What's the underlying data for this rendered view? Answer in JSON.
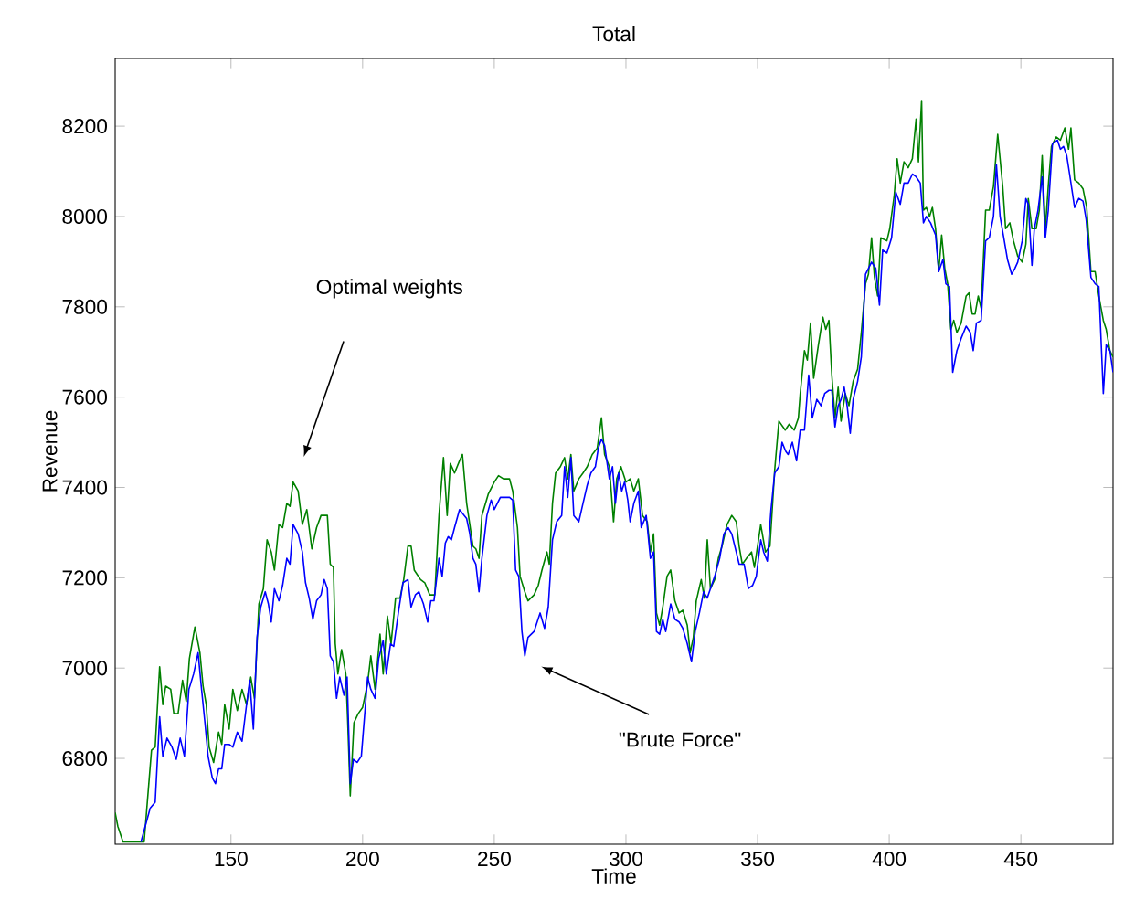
{
  "chart_data": {
    "type": "line",
    "title": "Total",
    "xlabel": "Time",
    "ylabel": "Revenue",
    "xlim": [
      106,
      485
    ],
    "ylim": [
      6610,
      8350
    ],
    "xticks": [
      150,
      200,
      250,
      300,
      350,
      400,
      450
    ],
    "yticks": [
      6800,
      7000,
      7200,
      7400,
      7600,
      7800,
      8000,
      8200
    ],
    "series": [
      {
        "color": "#008000",
        "x": [
          106,
          107,
          109,
          117,
          119.8,
          121.2,
          122.9,
          124.1,
          125.2,
          127.1,
          128.3,
          129.9,
          131.6,
          133.0,
          134.2,
          136.3,
          138.2,
          139.4,
          140.6,
          141.7,
          143.4,
          145.3,
          146.5,
          147.6,
          149.3,
          150.7,
          152.4,
          154.2,
          155.9,
          157.5,
          158.9,
          160.6,
          162.3,
          163.7,
          165.3,
          166.5,
          168.2,
          169.6,
          171.2,
          172.4,
          173.6,
          175.5,
          177.1,
          178.8,
          180.7,
          182.5,
          184.2,
          186.6,
          187.7,
          188.9,
          189.6,
          190.6,
          192.0,
          193.6,
          194.3,
          195.3,
          196.7,
          198.3,
          200.0,
          201.9,
          203.1,
          204.7,
          206.6,
          207.8,
          209.4,
          210.8,
          212.5,
          214.2,
          215.6,
          217.2,
          218.4,
          219.6,
          222.0,
          223.6,
          225.5,
          227.4,
          229.0,
          230.7,
          232.1,
          233.3,
          234.9,
          236.8,
          237.9,
          239.5,
          240.7,
          241.9,
          243.0,
          244.2,
          245.3,
          247.7,
          250.0,
          251.6,
          253.5,
          255.8,
          257.0,
          258.8,
          259.8,
          261.6,
          262.8,
          265.1,
          266.7,
          268.1,
          270.0,
          270.9,
          272.1,
          273.3,
          275.1,
          276.7,
          277.9,
          279.1,
          280.2,
          282.1,
          283.7,
          285.3,
          287.2,
          289.1,
          290.7,
          291.9,
          293.7,
          295.3,
          296.5,
          298.1,
          300.0,
          301.6,
          303.0,
          304.7,
          306.3,
          308.1,
          309.3,
          310.5,
          311.6,
          312.8,
          314.0,
          315.6,
          317.0,
          318.6,
          320.2,
          321.6,
          323.3,
          324.4,
          325.6,
          326.7,
          328.6,
          329.8,
          330.9,
          332.1,
          333.7,
          335.1,
          336.5,
          338.4,
          340.2,
          341.9,
          343.0,
          344.2,
          345.8,
          347.7,
          348.8,
          351.2,
          353.0,
          354.7,
          356.5,
          358.1,
          360.5,
          362.0,
          363.9,
          365.5,
          366.2,
          367.8,
          368.9,
          370.1,
          371.3,
          373.1,
          374.8,
          375.9,
          377.1,
          378.2,
          379.4,
          380.6,
          381.7,
          383.3,
          384.7,
          386.3,
          388.0,
          389.4,
          391.0,
          392.1,
          393.3,
          394.4,
          395.6,
          396.8,
          399.1,
          400.2,
          401.9,
          403.0,
          404.2,
          405.6,
          407.2,
          408.8,
          410.2,
          411.1,
          412.3,
          413.0,
          414.1,
          415.3,
          416.4,
          417.6,
          418.8,
          419.9,
          421.1,
          422.2,
          423.4,
          424.5,
          425.7,
          427.3,
          429.2,
          430.3,
          431.5,
          432.6,
          433.8,
          434.9,
          436.6,
          438.0,
          439.6,
          441.2,
          443.1,
          444.2,
          445.8,
          447.2,
          448.8,
          450.5,
          451.9,
          452.8,
          454.2,
          455.8,
          457.0,
          458.1,
          459.3,
          460.4,
          461.6,
          463.4,
          465.0,
          466.7,
          468.1,
          469.0,
          470.4,
          472.0,
          473.6,
          475.0,
          476.6,
          478.2,
          479.6,
          481.3,
          482.4,
          483.8,
          485
        ],
        "values": [
          6680,
          6650,
          6615,
          6615,
          6818,
          6825,
          7003,
          6919,
          6960,
          6953,
          6899,
          6899,
          6973,
          6926,
          7021,
          7091,
          7034,
          6960,
          6919,
          6825,
          6791,
          6858,
          6831,
          6919,
          6865,
          6953,
          6906,
          6953,
          6919,
          6980,
          6933,
          7142,
          7176,
          7284,
          7257,
          7217,
          7318,
          7311,
          7365,
          7358,
          7412,
          7392,
          7318,
          7351,
          7264,
          7311,
          7338,
          7338,
          7230,
          7223,
          7054,
          6987,
          7041,
          6987,
          6886,
          6717,
          6879,
          6899,
          6913,
          6967,
          7027,
          6953,
          7075,
          6987,
          7115,
          7054,
          7155,
          7155,
          7196,
          7270,
          7270,
          7217,
          7196,
          7189,
          7162,
          7162,
          7338,
          7466,
          7338,
          7453,
          7432,
          7459,
          7473,
          7365,
          7318,
          7270,
          7264,
          7243,
          7338,
          7385,
          7412,
          7426,
          7419,
          7419,
          7392,
          7311,
          7203,
          7169,
          7149,
          7162,
          7183,
          7217,
          7257,
          7230,
          7365,
          7432,
          7446,
          7466,
          7419,
          7473,
          7392,
          7419,
          7432,
          7446,
          7473,
          7487,
          7554,
          7473,
          7446,
          7324,
          7419,
          7446,
          7412,
          7419,
          7392,
          7419,
          7338,
          7324,
          7257,
          7297,
          7122,
          7095,
          7135,
          7203,
          7217,
          7149,
          7122,
          7128,
          7095,
          7034,
          7068,
          7149,
          7196,
          7155,
          7284,
          7176,
          7196,
          7243,
          7270,
          7318,
          7338,
          7324,
          7270,
          7230,
          7243,
          7257,
          7223,
          7318,
          7257,
          7270,
          7439,
          7547,
          7527,
          7540,
          7527,
          7554,
          7608,
          7703,
          7682,
          7764,
          7642,
          7716,
          7777,
          7750,
          7770,
          7649,
          7554,
          7622,
          7547,
          7608,
          7581,
          7635,
          7662,
          7743,
          7851,
          7872,
          7953,
          7865,
          7824,
          7953,
          7946,
          7973,
          8047,
          8128,
          8074,
          8121,
          8108,
          8128,
          8216,
          8121,
          8257,
          8014,
          8020,
          8000,
          8020,
          7973,
          7878,
          7959,
          7885,
          7851,
          7750,
          7770,
          7743,
          7764,
          7824,
          7831,
          7784,
          7784,
          7824,
          7797,
          8014,
          8014,
          8067,
          8182,
          8067,
          7973,
          7986,
          7946,
          7912,
          7899,
          7939,
          8040,
          7973,
          7973,
          8014,
          8135,
          7973,
          8067,
          8155,
          8176,
          8169,
          8196,
          8149,
          8196,
          8081,
          8074,
          8061,
          8020,
          7878,
          7878,
          7824,
          7770,
          7750,
          7703,
          7689
        ]
      },
      {
        "color": "#0000ff",
        "x": [
          115.8,
          119.3,
          121.2,
          122.9,
          124.1,
          125.7,
          127.6,
          129.2,
          130.7,
          132.3,
          134.0,
          135.8,
          137.5,
          138.7,
          140.1,
          141.3,
          142.9,
          144.1,
          145.3,
          146.5,
          147.6,
          149.3,
          150.7,
          152.4,
          154.2,
          155.9,
          157.1,
          158.5,
          159.9,
          161.3,
          163.0,
          164.2,
          165.3,
          166.5,
          168.2,
          169.6,
          171.2,
          172.4,
          173.6,
          175.5,
          177.1,
          178.3,
          179.7,
          181.1,
          182.5,
          184.2,
          185.4,
          186.6,
          187.7,
          188.9,
          190.1,
          191.3,
          192.9,
          194.1,
          195.3,
          196.5,
          197.9,
          199.5,
          200.7,
          201.9,
          203.1,
          204.7,
          206.1,
          207.8,
          209.0,
          210.6,
          211.8,
          213.7,
          215.3,
          217.2,
          218.4,
          220.0,
          221.4,
          223.1,
          224.7,
          225.9,
          227.1,
          229.0,
          230.2,
          231.4,
          232.5,
          233.7,
          234.9,
          236.8,
          239.5,
          240.7,
          241.9,
          243.0,
          244.2,
          245.3,
          247.2,
          248.8,
          250.0,
          252.3,
          254.2,
          255.8,
          257.0,
          258.1,
          259.3,
          260.5,
          261.6,
          262.8,
          265.1,
          267.4,
          269.1,
          270.5,
          272.1,
          273.7,
          275.6,
          276.7,
          277.9,
          279.1,
          280.2,
          282.1,
          283.7,
          285.3,
          286.7,
          288.4,
          289.5,
          290.7,
          291.9,
          293.7,
          294.9,
          296.0,
          297.2,
          298.4,
          299.5,
          300.7,
          301.6,
          303.0,
          304.7,
          305.8,
          307.7,
          309.3,
          310.5,
          311.6,
          312.8,
          314.0,
          315.1,
          317.0,
          318.6,
          320.2,
          321.6,
          323.3,
          324.9,
          326.3,
          327.9,
          329.5,
          330.9,
          332.1,
          333.7,
          335.6,
          337.2,
          338.8,
          340.2,
          341.9,
          343.0,
          344.9,
          346.5,
          348.1,
          349.5,
          351.2,
          352.3,
          353.7,
          355.1,
          356.5,
          358.1,
          359.3,
          360.7,
          361.6,
          363.2,
          364.8,
          366.2,
          367.8,
          369.4,
          370.8,
          372.5,
          374.1,
          375.5,
          377.1,
          378.2,
          379.4,
          380.6,
          381.7,
          382.9,
          384.0,
          385.2,
          386.3,
          388.0,
          389.4,
          391.0,
          392.1,
          393.3,
          394.9,
          396.3,
          397.5,
          399.1,
          400.9,
          402.5,
          404.2,
          405.6,
          407.2,
          408.8,
          410.2,
          411.8,
          413.0,
          414.1,
          415.7,
          417.6,
          418.8,
          420.4,
          421.5,
          422.9,
          424.1,
          425.7,
          427.3,
          429.2,
          430.8,
          431.9,
          433.1,
          434.9,
          436.6,
          438.0,
          439.6,
          440.7,
          442.1,
          443.5,
          444.9,
          446.5,
          447.7,
          448.8,
          450.5,
          451.9,
          452.8,
          454.2,
          455.1,
          456.5,
          458.1,
          459.3,
          460.4,
          462.0,
          463.9,
          465.0,
          466.2,
          467.4,
          468.5,
          470.4,
          472.0,
          473.6,
          474.8,
          476.6,
          478.2,
          479.6,
          481.3,
          482.4,
          483.8,
          485
        ],
        "values": [
          6615,
          6690,
          6703,
          6892,
          6805,
          6845,
          6825,
          6798,
          6845,
          6805,
          6953,
          6987,
          7034,
          6960,
          6879,
          6805,
          6757,
          6744,
          6777,
          6777,
          6831,
          6831,
          6825,
          6858,
          6838,
          6919,
          6973,
          6865,
          7068,
          7135,
          7169,
          7142,
          7102,
          7176,
          7149,
          7183,
          7243,
          7230,
          7318,
          7297,
          7257,
          7189,
          7155,
          7108,
          7149,
          7162,
          7196,
          7176,
          7027,
          7014,
          6933,
          6980,
          6940,
          6980,
          6744,
          6798,
          6791,
          6805,
          6892,
          6980,
          6953,
          6933,
          7021,
          7061,
          6987,
          7054,
          7048,
          7128,
          7189,
          7196,
          7135,
          7162,
          7169,
          7142,
          7102,
          7149,
          7149,
          7243,
          7203,
          7277,
          7291,
          7284,
          7311,
          7351,
          7331,
          7297,
          7243,
          7230,
          7169,
          7243,
          7338,
          7372,
          7351,
          7378,
          7378,
          7378,
          7372,
          7217,
          7203,
          7081,
          7027,
          7068,
          7081,
          7122,
          7088,
          7135,
          7284,
          7324,
          7338,
          7446,
          7378,
          7466,
          7338,
          7324,
          7365,
          7405,
          7432,
          7446,
          7487,
          7507,
          7493,
          7419,
          7446,
          7365,
          7432,
          7392,
          7412,
          7372,
          7324,
          7365,
          7392,
          7311,
          7338,
          7243,
          7257,
          7081,
          7075,
          7108,
          7081,
          7142,
          7108,
          7102,
          7088,
          7054,
          7014,
          7081,
          7122,
          7169,
          7155,
          7176,
          7203,
          7243,
          7297,
          7311,
          7297,
          7257,
          7230,
          7230,
          7176,
          7183,
          7203,
          7284,
          7257,
          7237,
          7351,
          7432,
          7446,
          7500,
          7480,
          7473,
          7500,
          7459,
          7527,
          7527,
          7649,
          7554,
          7595,
          7581,
          7608,
          7615,
          7615,
          7534,
          7581,
          7595,
          7622,
          7581,
          7520,
          7595,
          7635,
          7689,
          7872,
          7885,
          7899,
          7885,
          7804,
          7926,
          7919,
          7953,
          8054,
          8027,
          8074,
          8074,
          8094,
          8088,
          8074,
          7986,
          8000,
          7986,
          7959,
          7878,
          7905,
          7851,
          7845,
          7655,
          7703,
          7730,
          7757,
          7743,
          7703,
          7764,
          7770,
          7946,
          7953,
          8000,
          8115,
          8000,
          7953,
          7905,
          7872,
          7885,
          7899,
          7946,
          8040,
          8027,
          7892,
          7973,
          8014,
          8088,
          7953,
          8014,
          8162,
          8169,
          8149,
          8155,
          8135,
          8094,
          8020,
          8040,
          8034,
          7993,
          7865,
          7851,
          7845,
          7608,
          7716,
          7703,
          7655
        ]
      }
    ],
    "annotations": [
      "Optimal weights",
      "\"Brute Force\""
    ]
  }
}
